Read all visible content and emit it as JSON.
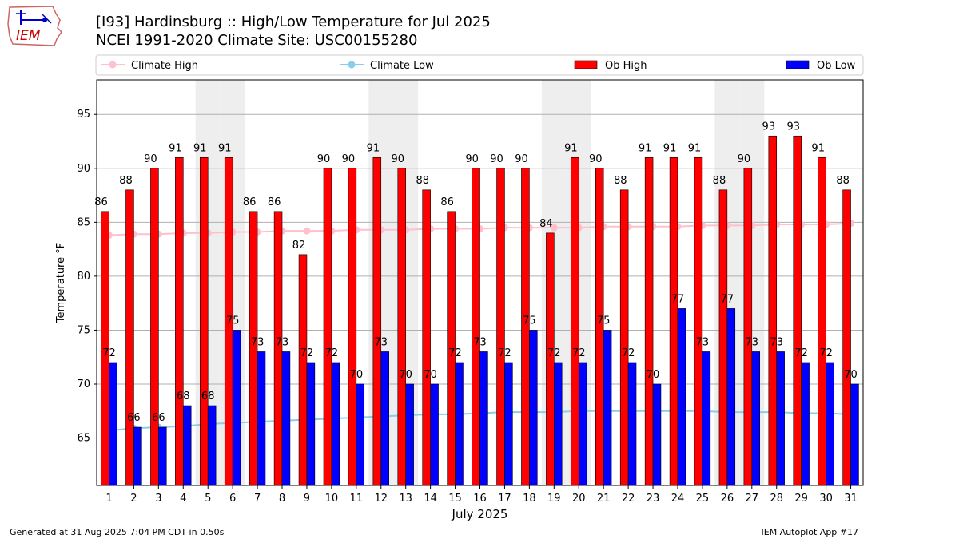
{
  "header": {
    "title_line1": "[I93] Hardinsburg :: High/Low Temperature for Jul 2025",
    "title_line2": "NCEI 1991-2020 Climate Site: USC00155280",
    "logo_text": "IEM"
  },
  "footer": {
    "generated": "Generated at 31 Aug 2025 7:04 PM CDT in 0.50s",
    "app": "IEM Autoplot App #17"
  },
  "colors": {
    "ob_high": "#ff0000",
    "ob_low": "#0000ff",
    "climate_high": "#ffc0cb",
    "climate_low": "#87ceeb",
    "weekend_shade": "#eeeeee",
    "grid": "#b0b0b0"
  },
  "chart_data": {
    "type": "bar",
    "xlabel": "July 2025",
    "ylabel": "Temperature °F",
    "ylim": [
      60.6,
      98.2
    ],
    "yticks": [
      65,
      70,
      75,
      80,
      85,
      90,
      95
    ],
    "grid": "horizontal",
    "legend_placement": "top",
    "categories": [
      "1",
      "2",
      "3",
      "4",
      "5",
      "6",
      "7",
      "8",
      "9",
      "10",
      "11",
      "12",
      "13",
      "14",
      "15",
      "16",
      "17",
      "18",
      "19",
      "20",
      "21",
      "22",
      "23",
      "24",
      "25",
      "26",
      "27",
      "28",
      "29",
      "30",
      "31"
    ],
    "weekend_days": [
      5,
      6,
      12,
      13,
      19,
      20,
      26,
      27
    ],
    "series": [
      {
        "name": "Ob High",
        "kind": "bar",
        "values": [
          86,
          88,
          90,
          91,
          91,
          91,
          86,
          86,
          82,
          90,
          90,
          91,
          90,
          88,
          86,
          90,
          90,
          90,
          84,
          91,
          90,
          88,
          91,
          91,
          91,
          88,
          90,
          93,
          93,
          91,
          88
        ]
      },
      {
        "name": "Ob Low",
        "kind": "bar",
        "values": [
          72,
          66,
          66,
          68,
          68,
          75,
          73,
          73,
          72,
          72,
          70,
          73,
          70,
          70,
          72,
          73,
          72,
          75,
          72,
          72,
          75,
          72,
          70,
          77,
          73,
          77,
          73,
          73,
          72,
          72,
          70
        ]
      },
      {
        "name": "Climate High",
        "kind": "line",
        "values": [
          83.8,
          83.9,
          83.9,
          84.0,
          84.0,
          84.1,
          84.1,
          84.2,
          84.2,
          84.2,
          84.3,
          84.3,
          84.3,
          84.4,
          84.4,
          84.4,
          84.5,
          84.5,
          84.5,
          84.5,
          84.6,
          84.6,
          84.6,
          84.6,
          84.7,
          84.7,
          84.7,
          84.8,
          84.8,
          84.8,
          84.9
        ]
      },
      {
        "name": "Climate Low",
        "kind": "line",
        "values": [
          65.7,
          65.9,
          66.0,
          66.1,
          66.3,
          66.4,
          66.5,
          66.6,
          66.7,
          66.8,
          66.9,
          67.0,
          67.1,
          67.2,
          67.2,
          67.3,
          67.4,
          67.4,
          67.4,
          67.5,
          67.5,
          67.5,
          67.5,
          67.5,
          67.5,
          67.4,
          67.4,
          67.4,
          67.3,
          67.3,
          67.2
        ]
      }
    ]
  }
}
